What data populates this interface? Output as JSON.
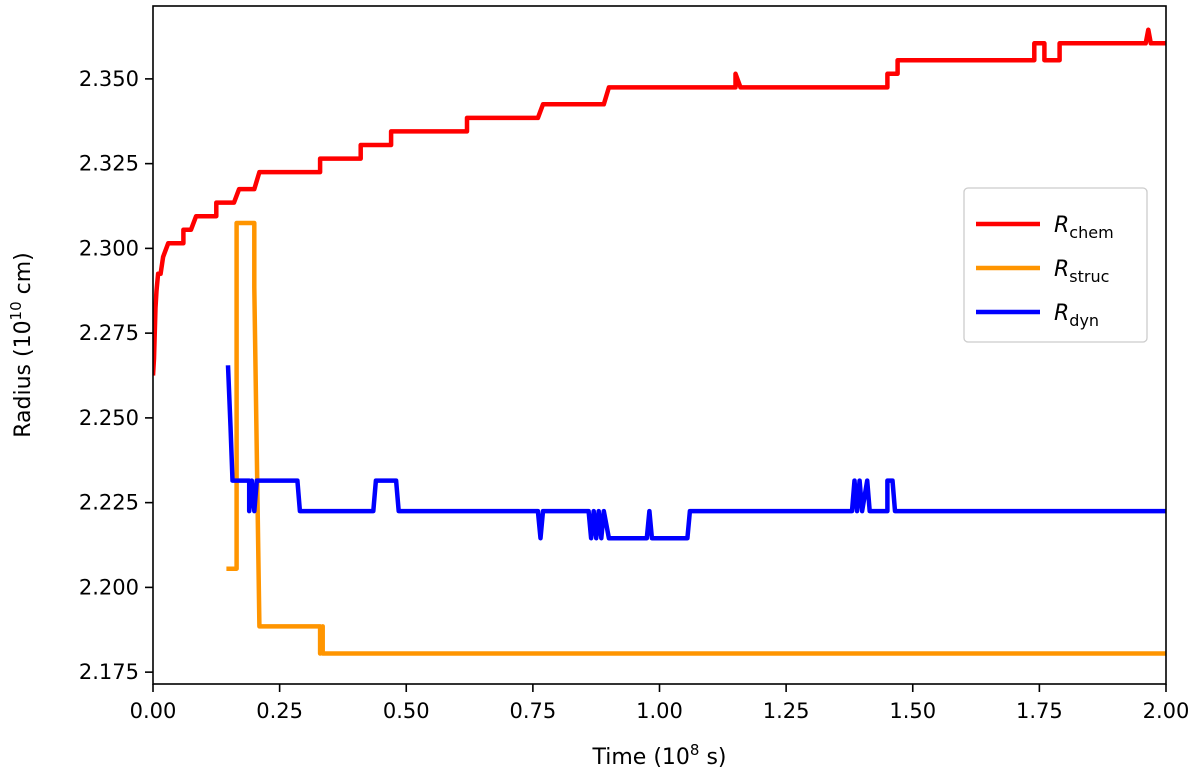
{
  "chart_data": {
    "type": "line",
    "title": "",
    "xlabel_main": "Time (10",
    "xlabel_exp": "8",
    "xlabel_unit": " s)",
    "ylabel_main": "Radius (10",
    "ylabel_exp": "10",
    "ylabel_unit": " cm)",
    "xlim": [
      0.0,
      2.0
    ],
    "ylim": [
      2.1715,
      2.3715
    ],
    "xticks": [
      0.0,
      0.25,
      0.5,
      0.75,
      1.0,
      1.25,
      1.5,
      1.75,
      2.0
    ],
    "xtick_labels": [
      "0.00",
      "0.25",
      "0.50",
      "0.75",
      "1.00",
      "1.25",
      "1.50",
      "1.75",
      "2.00"
    ],
    "yticks": [
      2.175,
      2.2,
      2.225,
      2.25,
      2.275,
      2.3,
      2.325,
      2.35
    ],
    "ytick_labels": [
      "2.175",
      "2.200",
      "2.225",
      "2.250",
      "2.275",
      "2.300",
      "2.325",
      "2.350"
    ],
    "grid": false,
    "legend_position": "center-right",
    "series": [
      {
        "name": "R",
        "subscript": "chem",
        "color": "#ff0000",
        "x": [
          0.0,
          0.002,
          0.005,
          0.007,
          0.01,
          0.015,
          0.02,
          0.03,
          0.045,
          0.06,
          0.065,
          0.075,
          0.085,
          0.1,
          0.125,
          0.16,
          0.17,
          0.2,
          0.21,
          0.26,
          0.31,
          0.33,
          0.39,
          0.41,
          0.47,
          0.6,
          0.62,
          0.76,
          0.77,
          0.89,
          0.9,
          1.13,
          1.15,
          1.16,
          1.45,
          1.47,
          1.72,
          1.74,
          1.76,
          1.79,
          1.96,
          1.965,
          1.97,
          2.0
        ],
        "y": [
          2.2625,
          2.2675,
          2.2825,
          2.2875,
          2.2925,
          2.2925,
          2.2975,
          2.3015,
          2.3015,
          2.3055,
          2.3055,
          2.3055,
          2.3095,
          2.3095,
          2.3135,
          2.3135,
          2.3175,
          2.3175,
          2.3225,
          2.3225,
          2.3225,
          2.3265,
          2.3265,
          2.3305,
          2.3345,
          2.3345,
          2.3385,
          2.3385,
          2.3425,
          2.3425,
          2.3475,
          2.3475,
          2.3515,
          2.3475,
          2.3515,
          2.3555,
          2.3555,
          2.3605,
          2.3555,
          2.3605,
          2.3605,
          2.3645,
          2.3605,
          2.3605
        ]
      },
      {
        "name": "R",
        "subscript": "struc",
        "color": "#ff9500",
        "x": [
          0.145,
          0.165,
          0.165,
          0.17,
          0.2,
          0.2,
          0.21,
          0.21,
          0.33,
          0.33,
          0.335,
          0.335,
          2.0
        ],
        "y": [
          2.2055,
          2.2055,
          2.3075,
          2.3075,
          2.3075,
          2.2885,
          2.1885,
          2.1885,
          2.1885,
          2.1805,
          2.1885,
          2.1805,
          2.1805
        ]
      },
      {
        "name": "R",
        "subscript": "dyn",
        "color": "#0000ff",
        "x": [
          0.148,
          0.153,
          0.157,
          0.16,
          0.19,
          0.19,
          0.195,
          0.2,
          0.205,
          0.285,
          0.29,
          0.435,
          0.44,
          0.48,
          0.485,
          0.76,
          0.765,
          0.77,
          0.86,
          0.865,
          0.87,
          0.875,
          0.88,
          0.885,
          0.89,
          0.9,
          0.975,
          0.98,
          0.985,
          0.99,
          1.055,
          1.06,
          1.38,
          1.385,
          1.39,
          1.395,
          1.4,
          1.41,
          1.415,
          1.42,
          1.45,
          1.46,
          1.465,
          2.0
        ],
        "y": [
          2.2655,
          2.2475,
          2.2315,
          2.2315,
          2.2315,
          2.2225,
          2.2315,
          2.2225,
          2.2315,
          2.2315,
          2.2225,
          2.2225,
          2.2315,
          2.2315,
          2.2225,
          2.2225,
          2.2145,
          2.2225,
          2.2225,
          2.2145,
          2.2225,
          2.2145,
          2.2225,
          2.2145,
          2.2225,
          2.2145,
          2.2145,
          2.2225,
          2.2145,
          2.2145,
          2.2145,
          2.2225,
          2.2225,
          2.2315,
          2.2225,
          2.2315,
          2.2225,
          2.2315,
          2.2225,
          2.2225,
          2.2315,
          2.2315,
          2.2225,
          2.2225
        ]
      }
    ]
  }
}
